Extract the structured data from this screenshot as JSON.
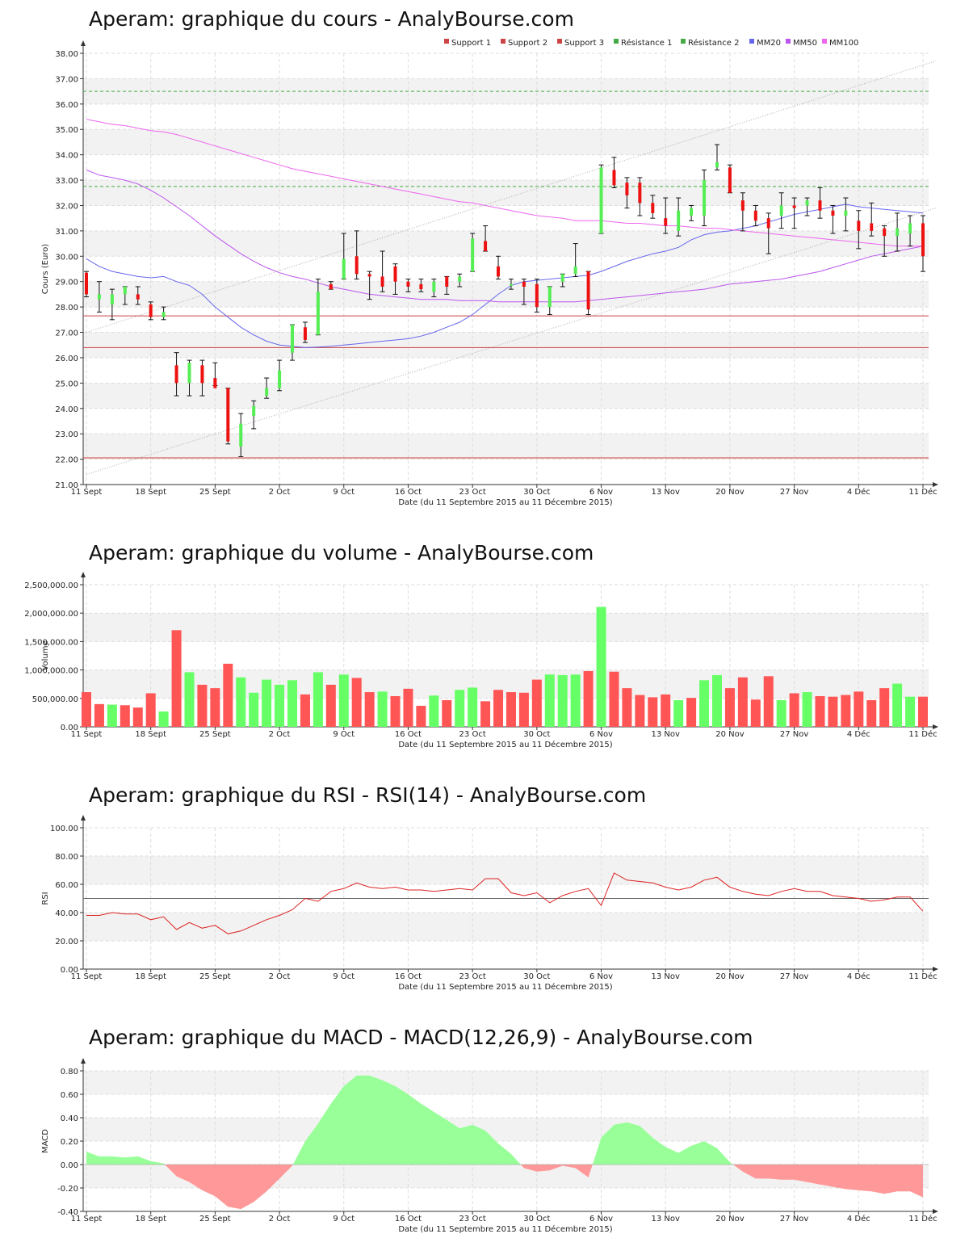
{
  "date_caption": "Date (du 11 Septembre 2015 au 11 Décembre 2015)",
  "x_labels": [
    "11 Sept",
    "18 Sept",
    "25 Sept",
    "2 Oct",
    "9 Oct",
    "16 Oct",
    "23 Oct",
    "30 Oct",
    "6 Nov",
    "13 Nov",
    "20 Nov",
    "27 Nov",
    "4 Déc",
    "11 Déc"
  ],
  "colors": {
    "up": "#55ee55",
    "down": "#ee1111",
    "vol_up": "#66ff66",
    "vol_down": "#ff5555",
    "support": "#cc4444",
    "resistance": "#44aa44",
    "mm20": "#6666ee",
    "mm50": "#bb55ee",
    "mm100": "#ee66ee",
    "rsi": "#dd2222",
    "macd_pos": "#99ff99",
    "macd_neg": "#ff9999"
  },
  "chart_data": [
    {
      "type": "line",
      "title": "Aperam: graphique du cours - AnalyBourse.com",
      "ylabel": "Cours (Euro)",
      "xlabel": "Date (du 11 Septembre 2015 au 11 Décembre 2015)",
      "ylim": [
        21,
        38
      ],
      "yticks": [
        "21.00",
        "22.00",
        "23.00",
        "24.00",
        "25.00",
        "26.00",
        "27.00",
        "28.00",
        "29.00",
        "30.00",
        "31.00",
        "32.00",
        "33.00",
        "34.00",
        "35.00",
        "36.00",
        "37.00",
        "38.00"
      ],
      "legend": [
        "Support 1",
        "Support 2",
        "Support 3",
        "Résistance 1",
        "Résistance 2",
        "MM20",
        "MM50",
        "MM100"
      ],
      "legend_placement": "top-right",
      "support_levels": [
        27.65,
        26.4,
        22.05
      ],
      "resistance_levels": [
        32.75,
        36.5
      ],
      "channel": {
        "upper": [
          [
            0,
            27.0
          ],
          [
            66,
            37.7
          ]
        ],
        "lower": [
          [
            0,
            21.4
          ],
          [
            66,
            31.9
          ]
        ]
      },
      "ohlc": [
        [
          29.35,
          29.4,
          28.4,
          28.5
        ],
        [
          28.3,
          29.0,
          27.8,
          28.5
        ],
        [
          28.1,
          28.7,
          27.5,
          28.5
        ],
        [
          28.5,
          28.8,
          28.1,
          28.8
        ],
        [
          28.5,
          28.8,
          28.1,
          28.3
        ],
        [
          28.1,
          28.2,
          27.5,
          27.6
        ],
        [
          27.6,
          28.0,
          27.5,
          27.8
        ],
        [
          25.7,
          26.2,
          24.5,
          25.0
        ],
        [
          25.0,
          25.9,
          24.5,
          25.8
        ],
        [
          25.7,
          25.9,
          24.5,
          25.0
        ],
        [
          25.2,
          25.8,
          24.9,
          24.8
        ],
        [
          24.8,
          24.8,
          22.6,
          22.7
        ],
        [
          22.5,
          23.8,
          22.1,
          23.4
        ],
        [
          23.7,
          24.3,
          23.2,
          24.1
        ],
        [
          24.5,
          25.2,
          24.4,
          24.8
        ],
        [
          24.8,
          25.9,
          24.7,
          25.5
        ],
        [
          26.2,
          27.3,
          25.9,
          27.3
        ],
        [
          27.2,
          27.4,
          26.6,
          26.7
        ],
        [
          26.9,
          29.1,
          26.9,
          28.6
        ],
        [
          28.9,
          29.0,
          28.7,
          28.7
        ],
        [
          29.1,
          30.9,
          29.1,
          29.9
        ],
        [
          30.0,
          31.0,
          29.1,
          29.3
        ],
        [
          29.3,
          29.4,
          28.3,
          29.2
        ],
        [
          29.2,
          30.2,
          28.6,
          28.8
        ],
        [
          29.6,
          29.7,
          28.5,
          29.0
        ],
        [
          29.0,
          29.1,
          28.6,
          28.8
        ],
        [
          28.9,
          29.1,
          28.6,
          28.7
        ],
        [
          28.6,
          29.1,
          28.4,
          29.0
        ],
        [
          29.2,
          29.2,
          28.5,
          28.8
        ],
        [
          29.0,
          29.3,
          28.8,
          29.2
        ],
        [
          29.4,
          30.9,
          29.4,
          30.7
        ],
        [
          30.6,
          31.2,
          30.2,
          30.2
        ],
        [
          29.6,
          30.0,
          29.1,
          29.2
        ],
        [
          28.9,
          29.1,
          28.7,
          28.9
        ],
        [
          29.0,
          29.1,
          28.1,
          28.8
        ],
        [
          28.9,
          29.1,
          27.8,
          28.0
        ],
        [
          28.0,
          28.8,
          27.7,
          28.8
        ],
        [
          29.0,
          29.3,
          28.8,
          29.3
        ],
        [
          29.3,
          30.5,
          29.2,
          29.6
        ],
        [
          29.4,
          29.4,
          27.7,
          27.9
        ],
        [
          30.9,
          33.6,
          30.9,
          33.5
        ],
        [
          33.4,
          33.9,
          32.7,
          32.8
        ],
        [
          32.9,
          33.1,
          31.9,
          32.4
        ],
        [
          32.9,
          33.1,
          31.6,
          32.1
        ],
        [
          32.1,
          32.4,
          31.5,
          31.7
        ],
        [
          31.5,
          32.3,
          30.9,
          31.2
        ],
        [
          31.0,
          32.3,
          30.8,
          31.8
        ],
        [
          31.6,
          32.0,
          31.4,
          31.9
        ],
        [
          31.6,
          33.4,
          31.2,
          33.0
        ],
        [
          33.5,
          34.4,
          33.4,
          33.7
        ],
        [
          33.5,
          33.6,
          32.5,
          32.5
        ],
        [
          32.2,
          32.5,
          31.0,
          31.8
        ],
        [
          31.8,
          32.0,
          31.2,
          31.4
        ],
        [
          31.5,
          31.7,
          30.1,
          31.1
        ],
        [
          31.6,
          32.5,
          31.1,
          32.0
        ],
        [
          32.0,
          32.3,
          31.1,
          31.9
        ],
        [
          32.0,
          32.3,
          31.6,
          32.2
        ],
        [
          32.2,
          32.7,
          31.5,
          31.8
        ],
        [
          31.8,
          32.0,
          30.9,
          31.6
        ],
        [
          31.6,
          32.3,
          31.0,
          31.8
        ],
        [
          31.4,
          31.8,
          30.3,
          31.0
        ],
        [
          31.3,
          32.1,
          30.8,
          31.0
        ],
        [
          31.1,
          31.2,
          30.0,
          30.8
        ],
        [
          30.8,
          31.7,
          30.2,
          31.1
        ],
        [
          30.9,
          31.6,
          30.4,
          31.3
        ],
        [
          31.3,
          31.6,
          29.4,
          30.0
        ]
      ],
      "series": [
        {
          "name": "MM20",
          "values": [
            29.9,
            29.6,
            29.4,
            29.3,
            29.2,
            29.15,
            29.2,
            29.0,
            28.85,
            28.5,
            28.0,
            27.6,
            27.2,
            26.9,
            26.65,
            26.5,
            26.45,
            26.4,
            26.42,
            26.45,
            26.5,
            26.55,
            26.6,
            26.65,
            26.7,
            26.75,
            26.85,
            27.0,
            27.2,
            27.4,
            27.7,
            28.1,
            28.5,
            28.85,
            29.0,
            29.05,
            29.1,
            29.15,
            29.2,
            29.25,
            29.4,
            29.6,
            29.8,
            29.95,
            30.1,
            30.2,
            30.35,
            30.65,
            30.85,
            30.95,
            31.0,
            31.1,
            31.2,
            31.35,
            31.5,
            31.65,
            31.75,
            31.85,
            31.95,
            32.05,
            31.95,
            31.9,
            31.85,
            31.8,
            31.75,
            31.7
          ]
        },
        {
          "name": "MM50",
          "values": [
            33.4,
            33.2,
            33.1,
            33.0,
            32.85,
            32.6,
            32.3,
            31.95,
            31.6,
            31.2,
            30.8,
            30.45,
            30.1,
            29.8,
            29.55,
            29.35,
            29.2,
            29.1,
            28.95,
            28.8,
            28.7,
            28.6,
            28.5,
            28.45,
            28.4,
            28.35,
            28.3,
            28.3,
            28.3,
            28.25,
            28.25,
            28.25,
            28.2,
            28.2,
            28.2,
            28.2,
            28.2,
            28.2,
            28.2,
            28.25,
            28.3,
            28.35,
            28.4,
            28.45,
            28.5,
            28.55,
            28.6,
            28.65,
            28.7,
            28.8,
            28.9,
            28.95,
            29.0,
            29.05,
            29.1,
            29.2,
            29.3,
            29.4,
            29.55,
            29.7,
            29.85,
            30.0,
            30.1,
            30.2,
            30.3,
            30.4
          ]
        },
        {
          "name": "MM100",
          "values": [
            35.4,
            35.3,
            35.2,
            35.15,
            35.05,
            34.95,
            34.9,
            34.8,
            34.65,
            34.5,
            34.35,
            34.2,
            34.05,
            33.9,
            33.75,
            33.6,
            33.45,
            33.35,
            33.25,
            33.15,
            33.05,
            32.95,
            32.85,
            32.75,
            32.65,
            32.55,
            32.45,
            32.35,
            32.25,
            32.15,
            32.1,
            32.0,
            31.9,
            31.8,
            31.7,
            31.6,
            31.55,
            31.5,
            31.4,
            31.4,
            31.4,
            31.35,
            31.3,
            31.3,
            31.25,
            31.2,
            31.2,
            31.15,
            31.1,
            31.1,
            31.05,
            31.0,
            30.95,
            30.9,
            30.85,
            30.8,
            30.75,
            30.7,
            30.65,
            30.6,
            30.55,
            30.5,
            30.45,
            30.4,
            30.4,
            30.4
          ]
        }
      ]
    },
    {
      "type": "bar",
      "title": "Aperam: graphique du volume - AnalyBourse.com",
      "ylabel": "Volume",
      "xlabel": "Date (du 11 Septembre 2015 au 11 Décembre 2015)",
      "ylim": [
        0,
        2500000
      ],
      "yticks": [
        "0.00",
        "500,000.00",
        "1,000,000.00",
        "1,500,000.00",
        "2,000,000.00",
        "2,500,000.00"
      ],
      "values": [
        610000,
        400000,
        390000,
        380000,
        340000,
        590000,
        270000,
        1700000,
        960000,
        740000,
        680000,
        1110000,
        870000,
        600000,
        830000,
        740000,
        820000,
        570000,
        960000,
        740000,
        920000,
        860000,
        610000,
        620000,
        540000,
        670000,
        370000,
        550000,
        470000,
        650000,
        690000,
        450000,
        650000,
        610000,
        600000,
        830000,
        920000,
        910000,
        920000,
        980000,
        2110000,
        970000,
        680000,
        560000,
        520000,
        570000,
        470000,
        510000,
        820000,
        910000,
        680000,
        870000,
        480000,
        890000,
        470000,
        590000,
        610000,
        540000,
        530000,
        560000,
        620000,
        470000,
        680000,
        760000,
        530000,
        530000
      ],
      "up": [
        false,
        false,
        true,
        false,
        false,
        false,
        true,
        false,
        true,
        false,
        false,
        false,
        true,
        true,
        true,
        true,
        true,
        false,
        true,
        false,
        true,
        false,
        false,
        true,
        false,
        false,
        false,
        true,
        false,
        true,
        true,
        false,
        false,
        false,
        false,
        false,
        true,
        true,
        true,
        false,
        true,
        false,
        false,
        false,
        false,
        false,
        true,
        false,
        true,
        true,
        false,
        false,
        false,
        false,
        true,
        false,
        true,
        false,
        false,
        false,
        false,
        false,
        false,
        true,
        true,
        false
      ]
    },
    {
      "type": "line",
      "title": "Aperam: graphique du RSI - RSI(14) - AnalyBourse.com",
      "ylabel": "RSI",
      "xlabel": "Date (du 11 Septembre 2015 au 11 Décembre 2015)",
      "ylim": [
        0,
        100
      ],
      "yticks": [
        "0.00",
        "20.00",
        "40.00",
        "60.00",
        "80.00",
        "100.00"
      ],
      "reference": 50,
      "values": [
        38,
        38,
        40,
        39,
        39,
        35,
        37,
        28,
        33,
        29,
        31,
        25,
        27,
        31,
        35,
        38,
        42,
        50,
        48,
        55,
        57,
        61,
        58,
        57,
        58,
        56,
        56,
        55,
        56,
        57,
        56,
        64,
        64,
        54,
        52,
        54,
        47,
        52,
        55,
        57,
        45,
        68,
        63,
        62,
        61,
        58,
        56,
        58,
        63,
        65,
        58,
        55,
        53,
        52,
        55,
        57,
        55,
        55,
        52,
        51,
        50,
        48,
        49,
        51,
        51,
        41
      ]
    },
    {
      "type": "area",
      "title": "Aperam: graphique du MACD - MACD(12,26,9) - AnalyBourse.com",
      "ylabel": "MACD",
      "xlabel": "Date (du 11 Septembre 2015 au 11 Décembre 2015)",
      "ylim": [
        -0.4,
        0.8
      ],
      "yticks": [
        "-0.40",
        "-0.20",
        "0.00",
        "0.20",
        "0.40",
        "0.60",
        "0.80"
      ],
      "values": [
        0.11,
        0.07,
        0.07,
        0.06,
        0.07,
        0.03,
        0.01,
        -0.1,
        -0.15,
        -0.22,
        -0.27,
        -0.36,
        -0.38,
        -0.32,
        -0.23,
        -0.12,
        -0.01,
        0.2,
        0.35,
        0.52,
        0.67,
        0.76,
        0.76,
        0.72,
        0.67,
        0.6,
        0.52,
        0.45,
        0.38,
        0.31,
        0.34,
        0.29,
        0.18,
        0.09,
        -0.03,
        -0.06,
        -0.05,
        -0.01,
        -0.03,
        -0.11,
        0.23,
        0.34,
        0.36,
        0.33,
        0.23,
        0.15,
        0.1,
        0.16,
        0.2,
        0.14,
        0.02,
        -0.06,
        -0.12,
        -0.12,
        -0.13,
        -0.13,
        -0.15,
        -0.17,
        -0.19,
        -0.21,
        -0.22,
        -0.23,
        -0.25,
        -0.23,
        -0.23,
        -0.28
      ]
    }
  ]
}
